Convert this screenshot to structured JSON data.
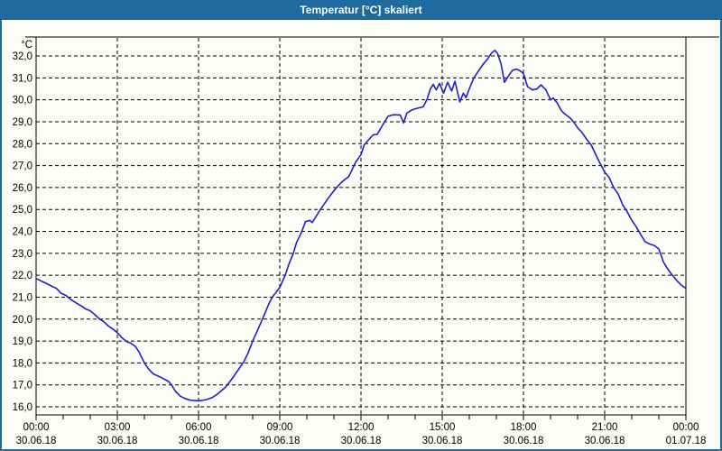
{
  "window": {
    "title": "Temperatur [°C] skaliert",
    "titlebar_color": "#1e6b9e",
    "titlebar_edge_color": "#12557e",
    "border_color": "#1e6b9e",
    "background_color": "#fdfdf8"
  },
  "chart_data": {
    "type": "line",
    "title": "Temperatur [°C] skaliert",
    "xlabel": "",
    "ylabel": "°C",
    "grid": "dashed",
    "legend": "none",
    "plot_bg": "#fdfdf8",
    "grid_color": "#000000",
    "x_axis": {
      "min_hours": 0,
      "max_hours": 24,
      "major_tick_hours": 3,
      "minor_tick_hours": 1,
      "ticks": [
        {
          "h": 0,
          "time": "00:00",
          "date": "30.06.18"
        },
        {
          "h": 3,
          "time": "03:00",
          "date": "30.06.18"
        },
        {
          "h": 6,
          "time": "06:00",
          "date": "30.06.18"
        },
        {
          "h": 9,
          "time": "09:00",
          "date": "30.06.18"
        },
        {
          "h": 12,
          "time": "12:00",
          "date": "30.06.18"
        },
        {
          "h": 15,
          "time": "15:00",
          "date": "30.06.18"
        },
        {
          "h": 18,
          "time": "18:00",
          "date": "30.06.18"
        },
        {
          "h": 21,
          "time": "21:00",
          "date": "30.06.18"
        },
        {
          "h": 24,
          "time": "00:00",
          "date": "01.07.18"
        }
      ]
    },
    "y_axis": {
      "min": 16,
      "max": 32,
      "step": 1,
      "tick_labels_top_to_bottom": [
        "32,0",
        "31,0",
        "30,0",
        "29,0",
        "28,0",
        "27,0",
        "26,0",
        "25,0",
        "24,0",
        "23,0",
        "22,0",
        "21,0",
        "20,0",
        "19,0",
        "18,0",
        "17,0",
        "16,0"
      ]
    },
    "series": [
      {
        "name": "Temperatur",
        "color": "#1f1fc8",
        "points": [
          [
            0.0,
            21.85
          ],
          [
            0.25,
            21.7
          ],
          [
            0.5,
            21.55
          ],
          [
            0.75,
            21.4
          ],
          [
            0.92,
            21.18
          ],
          [
            1.1,
            21.08
          ],
          [
            1.33,
            20.85
          ],
          [
            1.5,
            20.72
          ],
          [
            1.67,
            20.6
          ],
          [
            1.85,
            20.45
          ],
          [
            2.0,
            20.38
          ],
          [
            2.15,
            20.22
          ],
          [
            2.33,
            20.02
          ],
          [
            2.5,
            19.88
          ],
          [
            2.67,
            19.68
          ],
          [
            2.83,
            19.55
          ],
          [
            3.0,
            19.38
          ],
          [
            3.17,
            19.15
          ],
          [
            3.33,
            18.98
          ],
          [
            3.5,
            18.9
          ],
          [
            3.67,
            18.75
          ],
          [
            3.8,
            18.5
          ],
          [
            4.0,
            18.0
          ],
          [
            4.17,
            17.7
          ],
          [
            4.33,
            17.5
          ],
          [
            4.6,
            17.35
          ],
          [
            4.9,
            17.15
          ],
          [
            5.0,
            17.0
          ],
          [
            5.15,
            16.7
          ],
          [
            5.33,
            16.48
          ],
          [
            5.5,
            16.38
          ],
          [
            5.7,
            16.3
          ],
          [
            6.0,
            16.27
          ],
          [
            6.3,
            16.33
          ],
          [
            6.5,
            16.42
          ],
          [
            6.7,
            16.58
          ],
          [
            7.0,
            16.9
          ],
          [
            7.25,
            17.3
          ],
          [
            7.5,
            17.75
          ],
          [
            7.67,
            18.05
          ],
          [
            7.83,
            18.45
          ],
          [
            8.0,
            19.0
          ],
          [
            8.2,
            19.55
          ],
          [
            8.36,
            20.0
          ],
          [
            8.6,
            20.7
          ],
          [
            8.72,
            21.0
          ],
          [
            8.85,
            21.2
          ],
          [
            9.0,
            21.45
          ],
          [
            9.2,
            22.0
          ],
          [
            9.35,
            22.55
          ],
          [
            9.5,
            23.0
          ],
          [
            9.62,
            23.5
          ],
          [
            9.8,
            23.95
          ],
          [
            9.95,
            24.45
          ],
          [
            10.1,
            24.5
          ],
          [
            10.2,
            24.4
          ],
          [
            10.35,
            24.7
          ],
          [
            10.5,
            25.0
          ],
          [
            10.7,
            25.35
          ],
          [
            10.9,
            25.7
          ],
          [
            11.1,
            26.0
          ],
          [
            11.25,
            26.2
          ],
          [
            11.42,
            26.38
          ],
          [
            11.55,
            26.5
          ],
          [
            11.8,
            27.15
          ],
          [
            12.0,
            27.5
          ],
          [
            12.12,
            27.95
          ],
          [
            12.3,
            28.2
          ],
          [
            12.45,
            28.4
          ],
          [
            12.6,
            28.42
          ],
          [
            12.8,
            28.85
          ],
          [
            13.0,
            29.25
          ],
          [
            13.2,
            29.32
          ],
          [
            13.45,
            29.3
          ],
          [
            13.57,
            28.95
          ],
          [
            13.7,
            29.4
          ],
          [
            13.9,
            29.55
          ],
          [
            14.1,
            29.62
          ],
          [
            14.3,
            29.68
          ],
          [
            14.45,
            30.05
          ],
          [
            14.56,
            30.5
          ],
          [
            14.67,
            30.7
          ],
          [
            14.78,
            30.45
          ],
          [
            14.9,
            30.75
          ],
          [
            15.05,
            30.3
          ],
          [
            15.2,
            30.8
          ],
          [
            15.35,
            30.4
          ],
          [
            15.47,
            30.85
          ],
          [
            15.65,
            29.9
          ],
          [
            15.78,
            30.3
          ],
          [
            15.88,
            30.1
          ],
          [
            16.0,
            30.5
          ],
          [
            16.17,
            31.0
          ],
          [
            16.33,
            31.3
          ],
          [
            16.5,
            31.6
          ],
          [
            16.67,
            31.85
          ],
          [
            16.83,
            32.15
          ],
          [
            16.95,
            32.25
          ],
          [
            17.05,
            32.1
          ],
          [
            17.17,
            31.65
          ],
          [
            17.3,
            30.8
          ],
          [
            17.45,
            31.1
          ],
          [
            17.6,
            31.35
          ],
          [
            17.75,
            31.4
          ],
          [
            17.9,
            31.3
          ],
          [
            18.0,
            31.2
          ],
          [
            18.15,
            30.6
          ],
          [
            18.33,
            30.45
          ],
          [
            18.5,
            30.5
          ],
          [
            18.65,
            30.68
          ],
          [
            18.83,
            30.45
          ],
          [
            19.0,
            30.0
          ],
          [
            19.1,
            30.08
          ],
          [
            19.25,
            29.85
          ],
          [
            19.4,
            29.5
          ],
          [
            19.55,
            29.33
          ],
          [
            19.7,
            29.2
          ],
          [
            19.85,
            29.0
          ],
          [
            20.0,
            28.72
          ],
          [
            20.17,
            28.5
          ],
          [
            20.33,
            28.2
          ],
          [
            20.5,
            27.95
          ],
          [
            20.67,
            27.5
          ],
          [
            20.83,
            27.1
          ],
          [
            21.0,
            26.7
          ],
          [
            21.17,
            26.45
          ],
          [
            21.33,
            26.0
          ],
          [
            21.5,
            25.7
          ],
          [
            21.67,
            25.2
          ],
          [
            21.83,
            24.9
          ],
          [
            22.0,
            24.5
          ],
          [
            22.17,
            24.2
          ],
          [
            22.33,
            23.85
          ],
          [
            22.5,
            23.52
          ],
          [
            22.67,
            23.42
          ],
          [
            22.83,
            23.36
          ],
          [
            23.0,
            23.2
          ],
          [
            23.17,
            22.6
          ],
          [
            23.33,
            22.28
          ],
          [
            23.5,
            22.0
          ],
          [
            23.67,
            21.75
          ],
          [
            23.83,
            21.55
          ],
          [
            24.0,
            21.4
          ]
        ]
      }
    ]
  }
}
